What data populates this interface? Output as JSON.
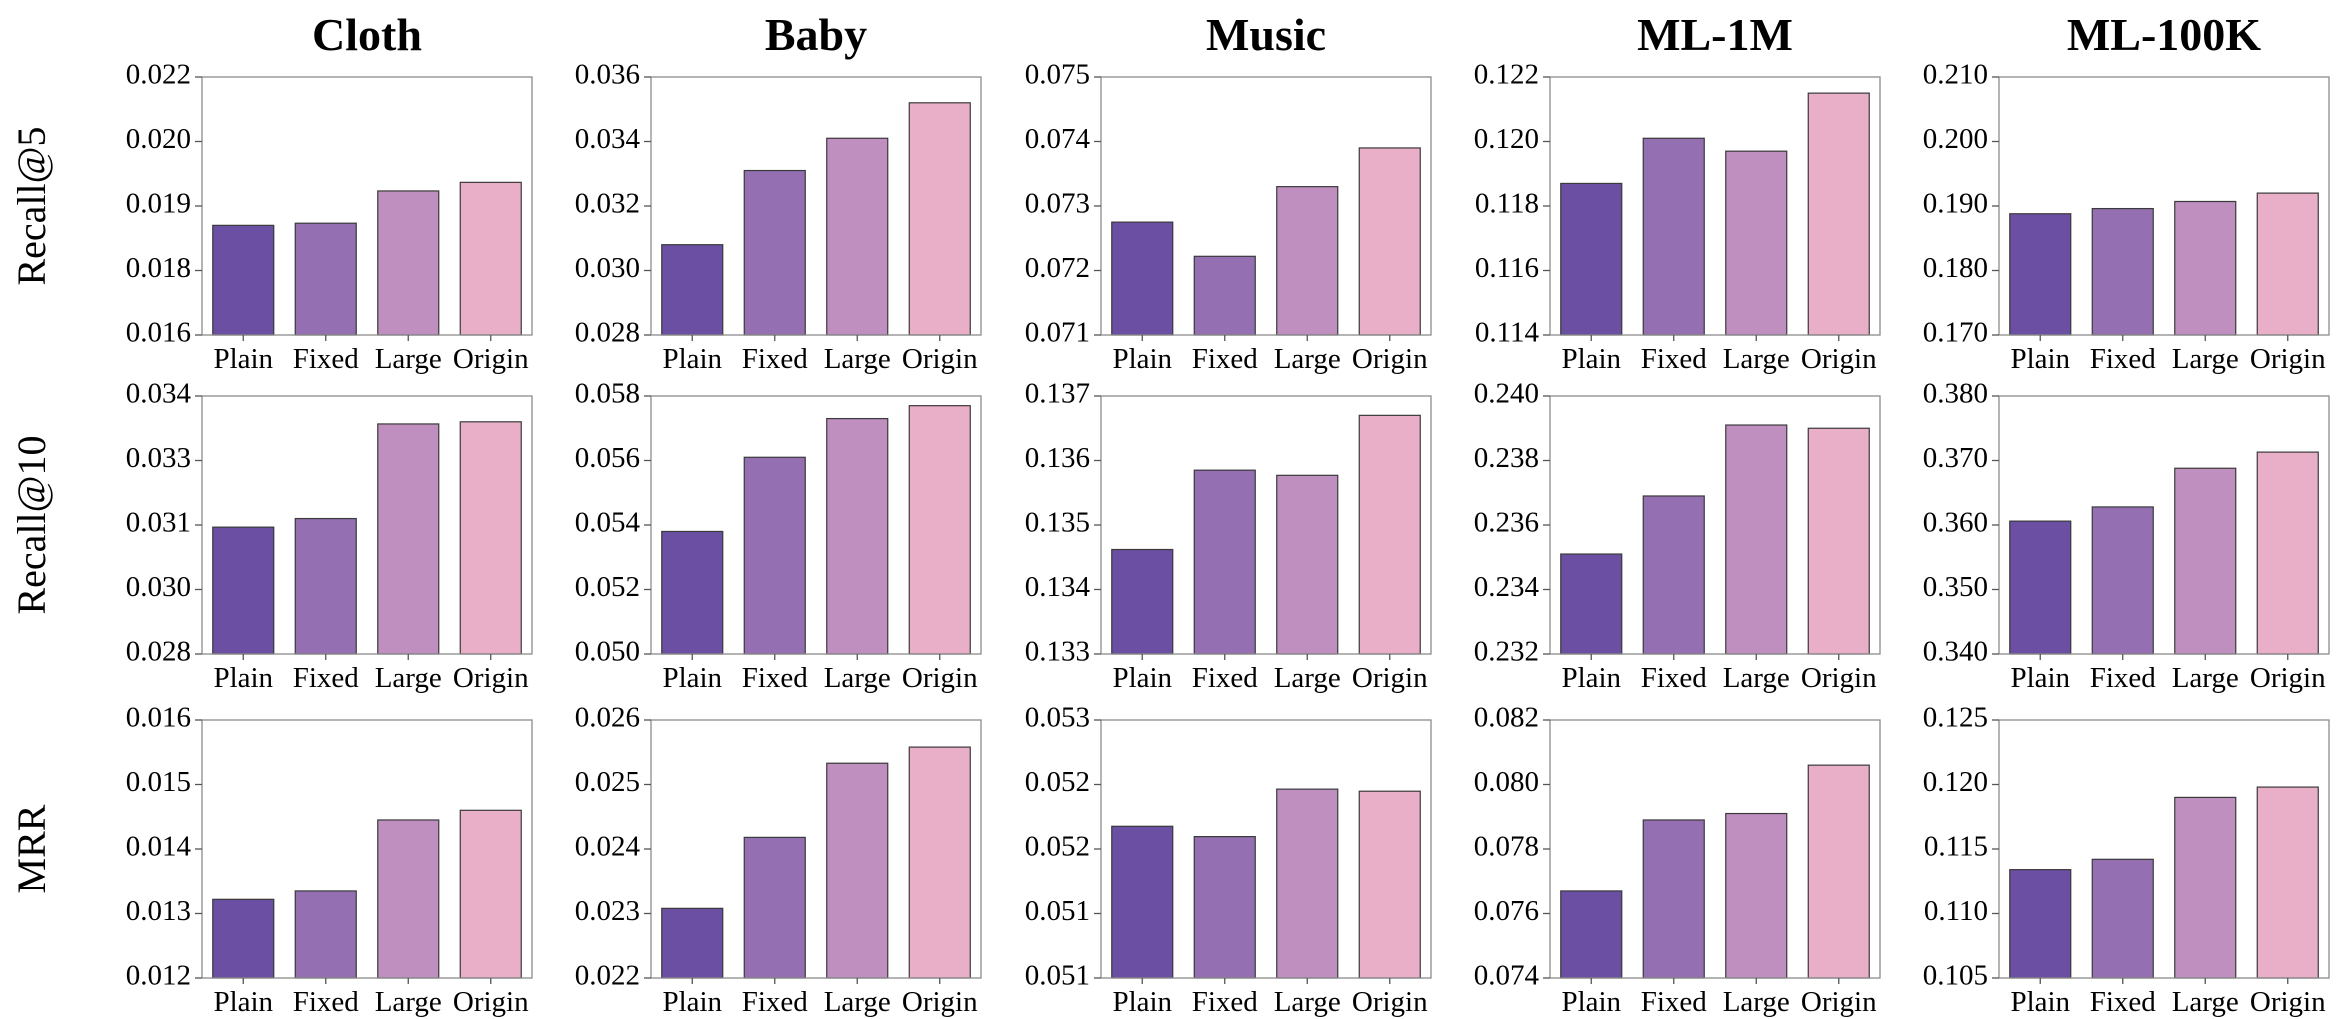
{
  "figure": {
    "column_titles": [
      "Cloth",
      "Baby",
      "Music",
      "ML-1M",
      "ML-100K"
    ],
    "row_labels": [
      "Recall@5",
      "Recall@10",
      "MRR"
    ],
    "categories": [
      "Plain",
      "Fixed",
      "Large",
      "Origin"
    ],
    "colors": [
      "#6a4fa3",
      "#9470b2",
      "#be8fbf",
      "#e9afc8"
    ]
  },
  "chart_data": [
    {
      "type": "bar",
      "title": "Cloth",
      "ylabel": "Recall@5",
      "categories": [
        "Plain",
        "Fixed",
        "Large",
        "Origin"
      ],
      "values": [
        0.01855,
        0.0186,
        0.01935,
        0.01955
      ],
      "ylim": [
        0.016,
        0.022
      ],
      "yticks": [
        "0.016",
        "0.018",
        "0.019",
        "0.020",
        "0.022"
      ]
    },
    {
      "type": "bar",
      "title": "Baby",
      "ylabel": "Recall@5",
      "categories": [
        "Plain",
        "Fixed",
        "Large",
        "Origin"
      ],
      "values": [
        0.0308,
        0.0331,
        0.0341,
        0.0352
      ],
      "ylim": [
        0.028,
        0.036
      ],
      "yticks": [
        "0.028",
        "0.030",
        "0.032",
        "0.034",
        "0.036"
      ]
    },
    {
      "type": "bar",
      "title": "Music",
      "ylabel": "Recall@5",
      "categories": [
        "Plain",
        "Fixed",
        "Large",
        "Origin"
      ],
      "values": [
        0.07275,
        0.07222,
        0.0733,
        0.0739
      ],
      "ylim": [
        0.071,
        0.075
      ],
      "yticks": [
        "0.071",
        "0.072",
        "0.073",
        "0.074",
        "0.075"
      ]
    },
    {
      "type": "bar",
      "title": "ML-1M",
      "ylabel": "Recall@5",
      "categories": [
        "Plain",
        "Fixed",
        "Large",
        "Origin"
      ],
      "values": [
        0.1187,
        0.1201,
        0.1197,
        0.1215
      ],
      "ylim": [
        0.114,
        0.122
      ],
      "yticks": [
        "0.114",
        "0.116",
        "0.118",
        "0.120",
        "0.122"
      ]
    },
    {
      "type": "bar",
      "title": "ML-100K",
      "ylabel": "Recall@5",
      "categories": [
        "Plain",
        "Fixed",
        "Large",
        "Origin"
      ],
      "values": [
        0.1888,
        0.1896,
        0.1907,
        0.192
      ],
      "ylim": [
        0.17,
        0.21
      ],
      "yticks": [
        "0.170",
        "0.180",
        "0.190",
        "0.200",
        "0.210"
      ]
    },
    {
      "type": "bar",
      "title": "Cloth",
      "ylabel": "Recall@10",
      "categories": [
        "Plain",
        "Fixed",
        "Large",
        "Origin"
      ],
      "values": [
        0.03095,
        0.03115,
        0.03335,
        0.0334
      ],
      "ylim": [
        0.028,
        0.034
      ],
      "yticks": [
        "0.028",
        "0.030",
        "0.031",
        "0.033",
        "0.034"
      ]
    },
    {
      "type": "bar",
      "title": "Baby",
      "ylabel": "Recall@10",
      "categories": [
        "Plain",
        "Fixed",
        "Large",
        "Origin"
      ],
      "values": [
        0.0538,
        0.0561,
        0.0573,
        0.0577
      ],
      "ylim": [
        0.05,
        0.058
      ],
      "yticks": [
        "0.050",
        "0.052",
        "0.054",
        "0.056",
        "0.058"
      ]
    },
    {
      "type": "bar",
      "title": "Music",
      "ylabel": "Recall@10",
      "categories": [
        "Plain",
        "Fixed",
        "Large",
        "Origin"
      ],
      "values": [
        0.13462,
        0.13585,
        0.13577,
        0.1367
      ],
      "ylim": [
        0.133,
        0.137
      ],
      "yticks": [
        "0.133",
        "0.134",
        "0.135",
        "0.136",
        "0.137"
      ]
    },
    {
      "type": "bar",
      "title": "ML-1M",
      "ylabel": "Recall@10",
      "categories": [
        "Plain",
        "Fixed",
        "Large",
        "Origin"
      ],
      "values": [
        0.2351,
        0.2369,
        0.2391,
        0.239
      ],
      "ylim": [
        0.232,
        0.24
      ],
      "yticks": [
        "0.232",
        "0.234",
        "0.236",
        "0.238",
        "0.240"
      ]
    },
    {
      "type": "bar",
      "title": "ML-100K",
      "ylabel": "Recall@10",
      "categories": [
        "Plain",
        "Fixed",
        "Large",
        "Origin"
      ],
      "values": [
        0.3606,
        0.3628,
        0.3688,
        0.3713
      ],
      "ylim": [
        0.34,
        0.38
      ],
      "yticks": [
        "0.340",
        "0.350",
        "0.360",
        "0.370",
        "0.380"
      ]
    },
    {
      "type": "bar",
      "title": "Cloth",
      "ylabel": "MRR",
      "categories": [
        "Plain",
        "Fixed",
        "Large",
        "Origin"
      ],
      "values": [
        0.01322,
        0.01335,
        0.01445,
        0.0146
      ],
      "ylim": [
        0.012,
        0.016
      ],
      "yticks": [
        "0.012",
        "0.013",
        "0.014",
        "0.015",
        "0.016"
      ]
    },
    {
      "type": "bar",
      "title": "Baby",
      "ylabel": "MRR",
      "categories": [
        "Plain",
        "Fixed",
        "Large",
        "Origin"
      ],
      "values": [
        0.02308,
        0.02418,
        0.02533,
        0.02558
      ],
      "ylim": [
        0.022,
        0.026
      ],
      "yticks": [
        "0.022",
        "0.023",
        "0.024",
        "0.025",
        "0.026"
      ]
    },
    {
      "type": "bar",
      "title": "Music",
      "ylabel": "MRR",
      "categories": [
        "Plain",
        "Fixed",
        "Large",
        "Origin"
      ],
      "values": [
        0.05197,
        0.05187,
        0.05233,
        0.05231
      ],
      "ylim": [
        0.0505,
        0.053
      ],
      "yticks": [
        "0.051",
        "0.051",
        "0.052",
        "0.052",
        "0.053"
      ]
    },
    {
      "type": "bar",
      "title": "ML-1M",
      "ylabel": "MRR",
      "categories": [
        "Plain",
        "Fixed",
        "Large",
        "Origin"
      ],
      "values": [
        0.0767,
        0.0789,
        0.0791,
        0.0806
      ],
      "ylim": [
        0.074,
        0.082
      ],
      "yticks": [
        "0.074",
        "0.076",
        "0.078",
        "0.080",
        "0.082"
      ]
    },
    {
      "type": "bar",
      "title": "ML-100K",
      "ylabel": "MRR",
      "categories": [
        "Plain",
        "Fixed",
        "Large",
        "Origin"
      ],
      "values": [
        0.1134,
        0.1142,
        0.119,
        0.1198
      ],
      "ylim": [
        0.105,
        0.125
      ],
      "yticks": [
        "0.105",
        "0.110",
        "0.115",
        "0.120",
        "0.125"
      ]
    }
  ]
}
